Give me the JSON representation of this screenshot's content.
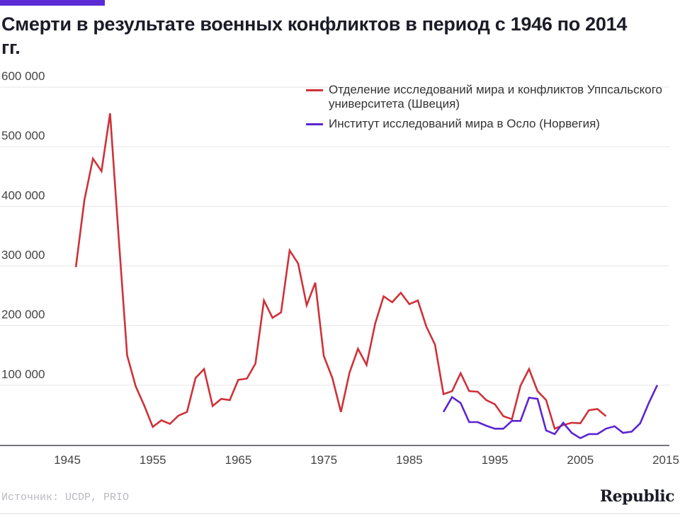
{
  "title": "Смерти в результате военных конфликтов в период с 1946 по 2014 гг.",
  "source": "Источник: UCDP, PRIO",
  "logo": "Republic",
  "colors": {
    "ucdp": "#cf3139",
    "prio": "#5a25d3",
    "accent": "#5b2bd6"
  },
  "chart_data": {
    "type": "line",
    "title": "Смерти в результате военных конфликтов в период с 1946 по 2014 гг.",
    "xlabel": "",
    "ylabel": "",
    "xlim": [
      1945,
      2015
    ],
    "ylim": [
      0,
      600000
    ],
    "x_ticks": [
      1945,
      1955,
      1965,
      1975,
      1985,
      1995,
      2005,
      2015
    ],
    "x_tick_labels": [
      "1945",
      "1955",
      "1965",
      "1975",
      "1985",
      "1995",
      "2005",
      "2015"
    ],
    "y_ticks": [
      100000,
      200000,
      300000,
      400000,
      500000,
      600000
    ],
    "y_tick_labels": [
      "100 000",
      "200 000",
      "300 000",
      "400 000",
      "500 000",
      "600 000"
    ],
    "grid": true,
    "legend_position": "top-right",
    "series": [
      {
        "name": "Отделение исследований мира и конфликтов Уппсальского университета (Швеция)",
        "color": "#cf3139",
        "x": [
          1946,
          1947,
          1948,
          1949,
          1950,
          1951,
          1952,
          1953,
          1954,
          1955,
          1956,
          1957,
          1958,
          1959,
          1960,
          1961,
          1962,
          1963,
          1964,
          1965,
          1966,
          1967,
          1968,
          1969,
          1970,
          1971,
          1972,
          1973,
          1974,
          1975,
          1976,
          1977,
          1978,
          1979,
          1980,
          1981,
          1982,
          1983,
          1984,
          1985,
          1986,
          1987,
          1988,
          1989,
          1990,
          1991,
          1992,
          1993,
          1994,
          1995,
          1996,
          1997,
          1998,
          1999,
          2000,
          2001,
          2002,
          2003,
          2004,
          2005,
          2006,
          2007,
          2008
        ],
        "values": [
          298000,
          410000,
          480000,
          459000,
          556000,
          350000,
          150000,
          98000,
          66000,
          30000,
          41000,
          35000,
          49000,
          55000,
          112000,
          127000,
          65000,
          77000,
          75000,
          109000,
          111000,
          136000,
          242000,
          213000,
          222000,
          326000,
          304000,
          234000,
          272000,
          149000,
          112000,
          55000,
          121000,
          161000,
          134000,
          203000,
          249000,
          239000,
          255000,
          236000,
          242000,
          198000,
          168000,
          85000,
          90000,
          120000,
          90000,
          89000,
          75000,
          68000,
          48000,
          43000,
          99000,
          127000,
          90000,
          75000,
          27000,
          33000,
          37000,
          36000,
          58000,
          60000,
          48000
        ]
      },
      {
        "name": "Институт исследований мира в Осло (Норвегия)",
        "color": "#5a25d3",
        "x": [
          1989,
          1990,
          1991,
          1992,
          1993,
          1994,
          1995,
          1996,
          1997,
          1998,
          1999,
          2000,
          2001,
          2002,
          2003,
          2004,
          2005,
          2006,
          2007,
          2008,
          2009,
          2010,
          2011,
          2012,
          2013,
          2014
        ],
        "values": [
          55000,
          80000,
          70000,
          38000,
          38000,
          32000,
          27000,
          27000,
          40000,
          40000,
          79000,
          77000,
          24000,
          18000,
          37000,
          20000,
          11000,
          18000,
          18000,
          27000,
          31000,
          20000,
          22000,
          36000,
          70000,
          100000
        ]
      }
    ]
  }
}
